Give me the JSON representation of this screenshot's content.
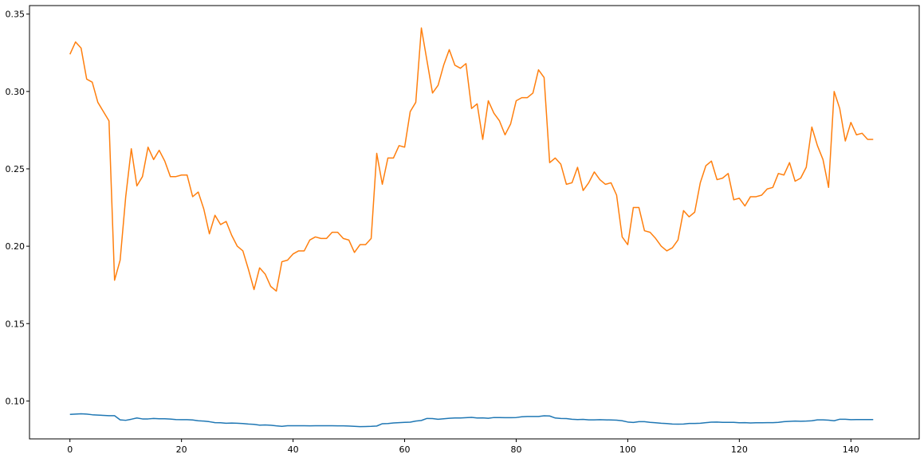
{
  "chart_data": {
    "type": "line",
    "title": "",
    "xlabel": "",
    "ylabel": "",
    "xlim": [
      -7.25,
      152.25
    ],
    "ylim": [
      0.0755,
      0.3555
    ],
    "grid": false,
    "x_ticks": [
      0,
      20,
      40,
      60,
      80,
      100,
      120,
      140
    ],
    "x_tick_labels": [
      "0",
      "20",
      "40",
      "60",
      "80",
      "100",
      "120",
      "140"
    ],
    "y_ticks": [
      0.1,
      0.15,
      0.2,
      0.25,
      0.3,
      0.35
    ],
    "y_tick_labels": [
      "0.10",
      "0.15",
      "0.20",
      "0.25",
      "0.30",
      "0.35"
    ],
    "series": [
      {
        "color": "#1f77b4",
        "x_start": 0,
        "values": [
          0.0913,
          0.0915,
          0.0917,
          0.0915,
          0.0911,
          0.0909,
          0.0907,
          0.0905,
          0.0905,
          0.0878,
          0.0875,
          0.0882,
          0.089,
          0.0884,
          0.0884,
          0.0887,
          0.0885,
          0.0885,
          0.0883,
          0.088,
          0.0879,
          0.0879,
          0.0877,
          0.0872,
          0.087,
          0.0866,
          0.086,
          0.0859,
          0.0856,
          0.0857,
          0.0856,
          0.0854,
          0.0851,
          0.0849,
          0.0844,
          0.0845,
          0.0843,
          0.0839,
          0.0836,
          0.084,
          0.084,
          0.084,
          0.084,
          0.0839,
          0.084,
          0.084,
          0.084,
          0.084,
          0.0839,
          0.0839,
          0.0838,
          0.0836,
          0.0834,
          0.0835,
          0.0836,
          0.0838,
          0.0853,
          0.0854,
          0.0858,
          0.086,
          0.0862,
          0.0863,
          0.087,
          0.0874,
          0.0887,
          0.0886,
          0.0882,
          0.0885,
          0.0888,
          0.089,
          0.089,
          0.0892,
          0.0894,
          0.089,
          0.0891,
          0.0888,
          0.0893,
          0.0893,
          0.0892,
          0.0892,
          0.0893,
          0.0898,
          0.09,
          0.09,
          0.09,
          0.0904,
          0.0903,
          0.089,
          0.0887,
          0.0886,
          0.0882,
          0.088,
          0.0881,
          0.0878,
          0.0878,
          0.0879,
          0.0878,
          0.0877,
          0.0876,
          0.0872,
          0.0864,
          0.0861,
          0.0866,
          0.0866,
          0.0862,
          0.0859,
          0.0856,
          0.0854,
          0.0851,
          0.085,
          0.0851,
          0.0855,
          0.0855,
          0.0856,
          0.086,
          0.0863,
          0.0864,
          0.0862,
          0.0862,
          0.0862,
          0.0859,
          0.086,
          0.0858,
          0.0859,
          0.0859,
          0.086,
          0.086,
          0.0862,
          0.0866,
          0.0868,
          0.087,
          0.0869,
          0.087,
          0.0872,
          0.0878,
          0.0878,
          0.0876,
          0.0872,
          0.0882,
          0.0882,
          0.0879,
          0.088,
          0.088,
          0.088,
          0.088
        ]
      },
      {
        "color": "#ff7f0e",
        "x_start": 0,
        "values": [
          0.324,
          0.332,
          0.328,
          0.308,
          0.306,
          0.293,
          0.287,
          0.281,
          0.178,
          0.191,
          0.232,
          0.263,
          0.239,
          0.245,
          0.264,
          0.256,
          0.262,
          0.255,
          0.245,
          0.245,
          0.246,
          0.246,
          0.232,
          0.235,
          0.224,
          0.208,
          0.22,
          0.214,
          0.216,
          0.207,
          0.2,
          0.197,
          0.185,
          0.172,
          0.186,
          0.182,
          0.174,
          0.171,
          0.19,
          0.191,
          0.195,
          0.197,
          0.197,
          0.204,
          0.206,
          0.205,
          0.205,
          0.209,
          0.209,
          0.205,
          0.204,
          0.196,
          0.201,
          0.201,
          0.205,
          0.26,
          0.24,
          0.257,
          0.257,
          0.265,
          0.264,
          0.287,
          0.293,
          0.341,
          0.32,
          0.299,
          0.304,
          0.317,
          0.327,
          0.317,
          0.315,
          0.318,
          0.289,
          0.292,
          0.269,
          0.294,
          0.286,
          0.281,
          0.272,
          0.279,
          0.294,
          0.296,
          0.296,
          0.299,
          0.314,
          0.309,
          0.254,
          0.257,
          0.253,
          0.24,
          0.241,
          0.251,
          0.236,
          0.241,
          0.248,
          0.243,
          0.24,
          0.241,
          0.233,
          0.206,
          0.201,
          0.225,
          0.225,
          0.21,
          0.209,
          0.205,
          0.2,
          0.197,
          0.199,
          0.204,
          0.223,
          0.219,
          0.222,
          0.241,
          0.252,
          0.255,
          0.243,
          0.244,
          0.247,
          0.23,
          0.231,
          0.226,
          0.232,
          0.232,
          0.233,
          0.237,
          0.238,
          0.247,
          0.246,
          0.254,
          0.242,
          0.244,
          0.251,
          0.277,
          0.265,
          0.256,
          0.238,
          0.3,
          0.289,
          0.268,
          0.28,
          0.272,
          0.273,
          0.269,
          0.269
        ]
      }
    ]
  }
}
